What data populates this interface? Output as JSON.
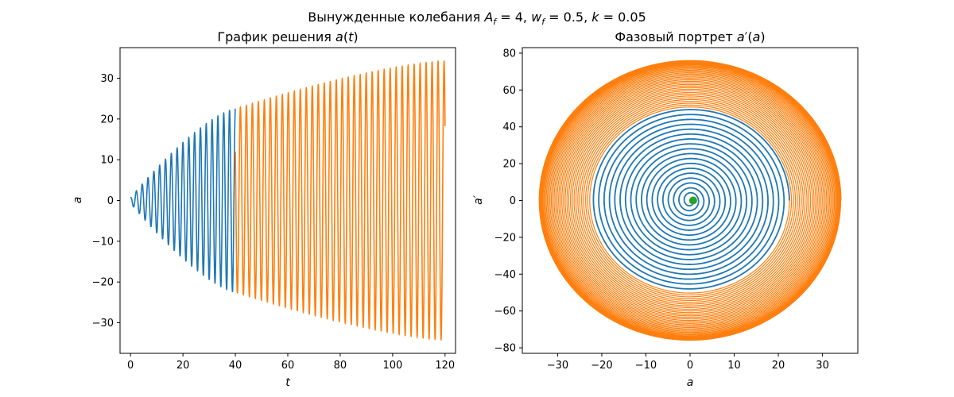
{
  "suptitle": "Вынужденные колебания A_f = 4, w_f = 0.5, k = 0.05",
  "chart_data": [
    {
      "type": "line",
      "title": "График решения a(t)",
      "xlabel": "t",
      "ylabel": "a",
      "xlim": [
        -4,
        124
      ],
      "ylim": [
        -37.5,
        37.5
      ],
      "xticks": [
        0,
        20,
        40,
        60,
        80,
        100,
        120
      ],
      "yticks": [
        -30,
        -20,
        -10,
        0,
        10,
        20,
        30
      ],
      "grid": false,
      "legend": "none",
      "series": [
        {
          "color": "#1f77b4",
          "t_range": [
            0,
            40
          ],
          "amplitude_start": 0.7,
          "amplitude_end": 22.5,
          "oscillations": 18,
          "initial_value": 0.7
        },
        {
          "color": "#ff7f0e",
          "t_range": [
            40,
            120
          ],
          "amplitude_start": 22.5,
          "amplitude_end": 34.2,
          "oscillations": 35,
          "initial_value": 12
        }
      ]
    },
    {
      "type": "line",
      "title": "Фазовый портрет a′(a)",
      "xlabel": "a",
      "ylabel": "a′",
      "xlim": [
        -38,
        38
      ],
      "ylim": [
        -83,
        83
      ],
      "xticks": [
        -30,
        -20,
        -10,
        0,
        10,
        20,
        30
      ],
      "yticks": [
        -80,
        -60,
        -40,
        -20,
        0,
        20,
        40,
        60,
        80
      ],
      "grid": false,
      "legend": "none",
      "series": [
        {
          "color": "#1f77b4",
          "a_radius_range": [
            0.7,
            22.5
          ],
          "v_radius_range": [
            2.2,
            50
          ],
          "turns": 18
        },
        {
          "color": "#ff7f0e",
          "a_radius_range": [
            22.5,
            34.2
          ],
          "v_radius_range": [
            50,
            76
          ],
          "turns": 35
        }
      ],
      "start_point": {
        "a": 0.7,
        "v": 0,
        "color": "#2ca02c"
      }
    }
  ]
}
